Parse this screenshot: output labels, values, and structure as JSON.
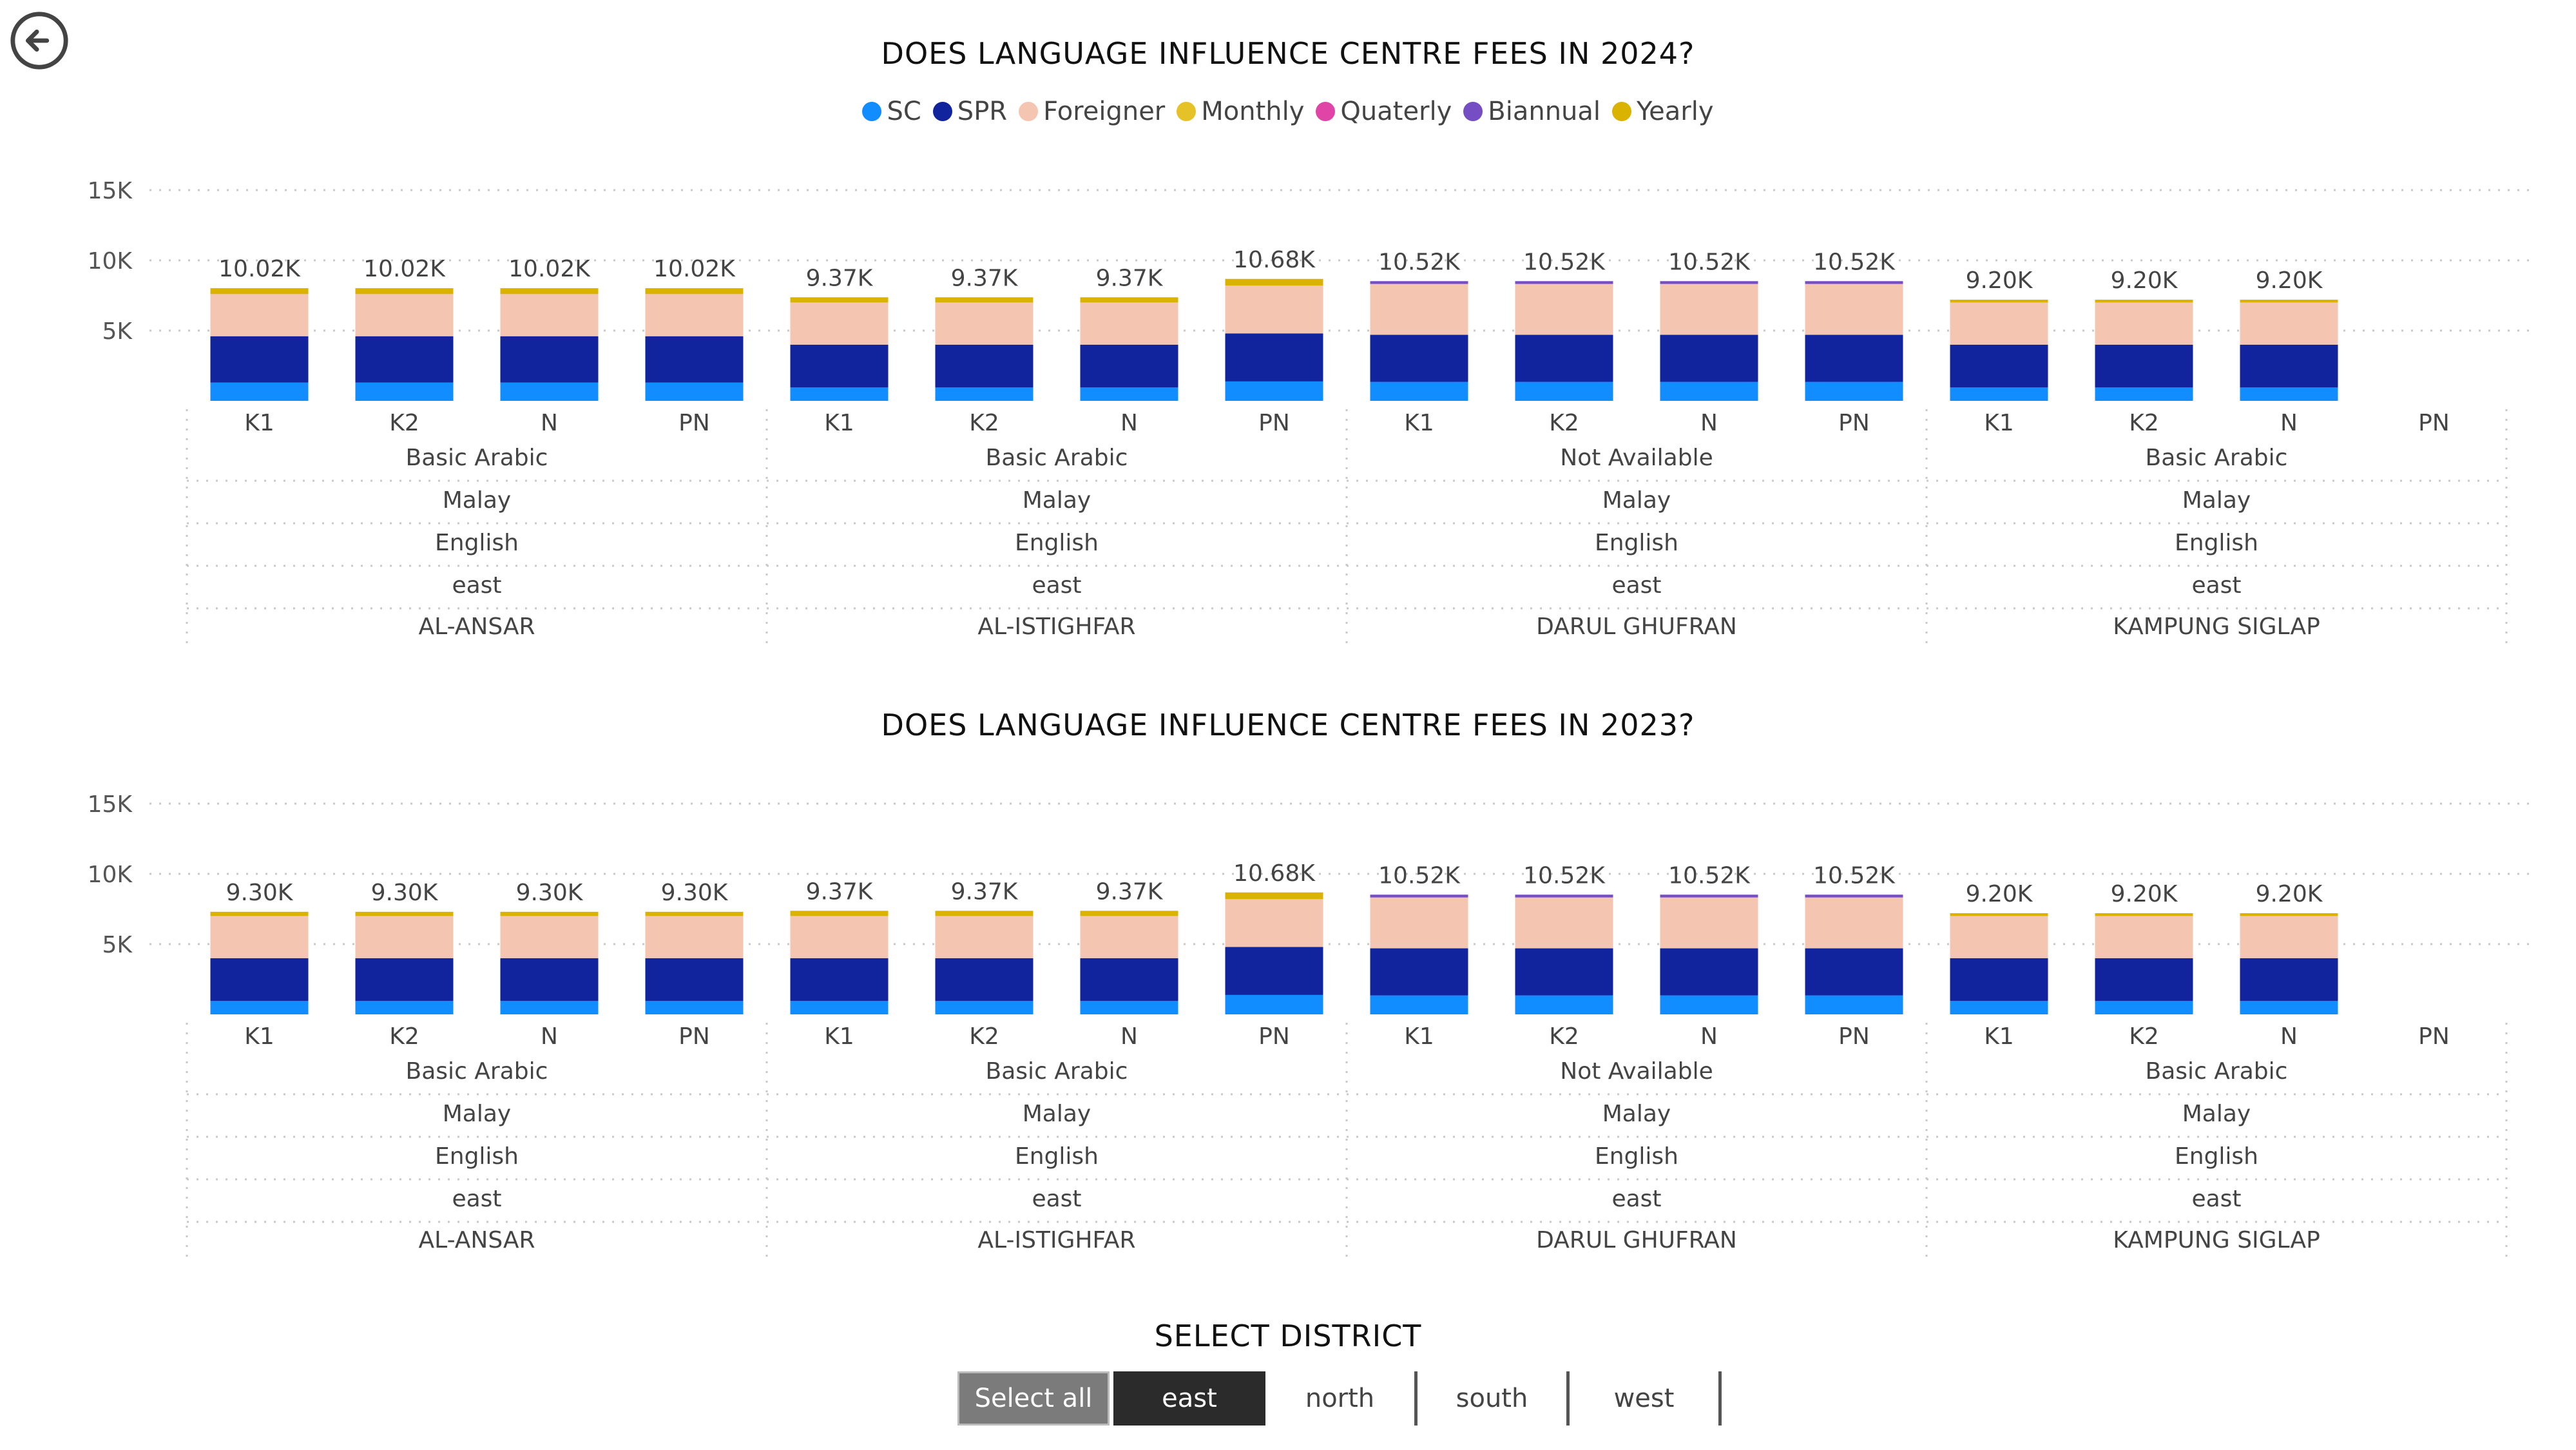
{
  "legend": [
    {
      "label": "SC",
      "color": "#118DFF"
    },
    {
      "label": "SPR",
      "color": "#12239E"
    },
    {
      "label": "Foreigner",
      "color": "#F4C5B0"
    },
    {
      "label": "Monthly",
      "color": "#E6C229"
    },
    {
      "label": "Quaterly",
      "color": "#E044A7"
    },
    {
      "label": "Biannual",
      "color": "#744EC2"
    },
    {
      "label": "Yearly",
      "color": "#D9B300"
    }
  ],
  "slicer": {
    "title": "SELECT DISTRICT",
    "options": [
      "Select all",
      "east",
      "north",
      "south",
      "west"
    ],
    "selected": "east"
  },
  "chart_data": [
    {
      "type": "bar",
      "stacked": true,
      "title": "DOES LANGUAGE INFLUENCE CENTRE FEES IN 2024?",
      "ylim": [
        0,
        15000
      ],
      "yticks": [
        {
          "v": 5000,
          "label": "5K"
        },
        {
          "v": 10000,
          "label": "10K"
        },
        {
          "v": 15000,
          "label": "15K"
        }
      ],
      "grid": true,
      "hierarchy_levels": [
        "subject",
        "language1",
        "language2",
        "district",
        "centre"
      ],
      "groups": [
        {
          "centre": "AL-ANSAR",
          "district": "east",
          "language2": "English",
          "language1": "Malay",
          "subject": "Basic Arabic",
          "categories": [
            "K1",
            "K2",
            "N",
            "PN"
          ],
          "totals": [
            "10.02K",
            "10.02K",
            "10.02K",
            "10.02K"
          ],
          "series": {
            "SC": [
              1300,
              1300,
              1300,
              1300
            ],
            "SPR": [
              3300,
              3300,
              3300,
              3300
            ],
            "Foreigner": [
              3000,
              3000,
              3000,
              3000
            ],
            "Monthly": [
              0,
              0,
              0,
              0
            ],
            "Quaterly": [
              0,
              0,
              0,
              0
            ],
            "Biannual": [
              0,
              0,
              0,
              0
            ],
            "Yearly": [
              420,
              420,
              420,
              420
            ]
          }
        },
        {
          "centre": "AL-ISTIGHFAR",
          "district": "east",
          "language2": "English",
          "language1": "Malay",
          "subject": "Basic Arabic",
          "categories": [
            "K1",
            "K2",
            "N",
            "PN"
          ],
          "totals": [
            "9.37K",
            "9.37K",
            "9.37K",
            "10.68K"
          ],
          "series": {
            "SC": [
              950,
              950,
              950,
              1380
            ],
            "SPR": [
              3050,
              3050,
              3050,
              3420
            ],
            "Foreigner": [
              3000,
              3000,
              3000,
              3400
            ],
            "Monthly": [
              0,
              0,
              0,
              0
            ],
            "Quaterly": [
              0,
              0,
              0,
              0
            ],
            "Biannual": [
              0,
              0,
              0,
              0
            ],
            "Yearly": [
              370,
              370,
              370,
              480
            ]
          }
        },
        {
          "centre": "DARUL GHUFRAN",
          "district": "east",
          "language2": "English",
          "language1": "Malay",
          "subject": "Not Available",
          "categories": [
            "K1",
            "K2",
            "N",
            "PN"
          ],
          "totals": [
            "10.52K",
            "10.52K",
            "10.52K",
            "10.52K"
          ],
          "series": {
            "SC": [
              1350,
              1350,
              1350,
              1350
            ],
            "SPR": [
              3350,
              3350,
              3350,
              3350
            ],
            "Foreigner": [
              3620,
              3620,
              3620,
              3620
            ],
            "Monthly": [
              0,
              0,
              0,
              0
            ],
            "Quaterly": [
              0,
              0,
              0,
              0
            ],
            "Biannual": [
              200,
              200,
              200,
              200
            ],
            "Yearly": [
              0,
              0,
              0,
              0
            ]
          }
        },
        {
          "centre": "KAMPUNG SIGLAP",
          "district": "east",
          "language2": "English",
          "language1": "Malay",
          "subject": "Basic Arabic",
          "categories": [
            "K1",
            "K2",
            "N",
            "PN"
          ],
          "totals": [
            "9.20K",
            "9.20K",
            "9.20K",
            null
          ],
          "series": {
            "SC": [
              950,
              950,
              950,
              0
            ],
            "SPR": [
              3050,
              3050,
              3050,
              0
            ],
            "Foreigner": [
              3000,
              3000,
              3000,
              0
            ],
            "Monthly": [
              0,
              0,
              0,
              0
            ],
            "Quaterly": [
              0,
              0,
              0,
              0
            ],
            "Biannual": [
              0,
              0,
              0,
              0
            ],
            "Yearly": [
              200,
              200,
              200,
              0
            ]
          }
        }
      ]
    },
    {
      "type": "bar",
      "stacked": true,
      "title": "DOES LANGUAGE INFLUENCE CENTRE FEES IN 2023?",
      "ylim": [
        0,
        15000
      ],
      "yticks": [
        {
          "v": 5000,
          "label": "5K"
        },
        {
          "v": 10000,
          "label": "10K"
        },
        {
          "v": 15000,
          "label": "15K"
        }
      ],
      "grid": true,
      "hierarchy_levels": [
        "subject",
        "language1",
        "language2",
        "district",
        "centre"
      ],
      "groups": [
        {
          "centre": "AL-ANSAR",
          "district": "east",
          "language2": "English",
          "language1": "Malay",
          "subject": "Basic Arabic",
          "categories": [
            "K1",
            "K2",
            "N",
            "PN"
          ],
          "totals": [
            "9.30K",
            "9.30K",
            "9.30K",
            "9.30K"
          ],
          "series": {
            "SC": [
              950,
              950,
              950,
              950
            ],
            "SPR": [
              3050,
              3050,
              3050,
              3050
            ],
            "Foreigner": [
              3000,
              3000,
              3000,
              3000
            ],
            "Monthly": [
              0,
              0,
              0,
              0
            ],
            "Quaterly": [
              0,
              0,
              0,
              0
            ],
            "Biannual": [
              0,
              0,
              0,
              0
            ],
            "Yearly": [
              300,
              300,
              300,
              300
            ]
          }
        },
        {
          "centre": "AL-ISTIGHFAR",
          "district": "east",
          "language2": "English",
          "language1": "Malay",
          "subject": "Basic Arabic",
          "categories": [
            "K1",
            "K2",
            "N",
            "PN"
          ],
          "totals": [
            "9.37K",
            "9.37K",
            "9.37K",
            "10.68K"
          ],
          "series": {
            "SC": [
              950,
              950,
              950,
              1380
            ],
            "SPR": [
              3050,
              3050,
              3050,
              3420
            ],
            "Foreigner": [
              3000,
              3000,
              3000,
              3400
            ],
            "Monthly": [
              0,
              0,
              0,
              0
            ],
            "Quaterly": [
              0,
              0,
              0,
              0
            ],
            "Biannual": [
              0,
              0,
              0,
              0
            ],
            "Yearly": [
              370,
              370,
              370,
              480
            ]
          }
        },
        {
          "centre": "DARUL GHUFRAN",
          "district": "east",
          "language2": "English",
          "language1": "Malay",
          "subject": "Not Available",
          "categories": [
            "K1",
            "K2",
            "N",
            "PN"
          ],
          "totals": [
            "10.52K",
            "10.52K",
            "10.52K",
            "10.52K"
          ],
          "series": {
            "SC": [
              1350,
              1350,
              1350,
              1350
            ],
            "SPR": [
              3350,
              3350,
              3350,
              3350
            ],
            "Foreigner": [
              3620,
              3620,
              3620,
              3620
            ],
            "Monthly": [
              0,
              0,
              0,
              0
            ],
            "Quaterly": [
              0,
              0,
              0,
              0
            ],
            "Biannual": [
              200,
              200,
              200,
              200
            ],
            "Yearly": [
              0,
              0,
              0,
              0
            ]
          }
        },
        {
          "centre": "KAMPUNG SIGLAP",
          "district": "east",
          "language2": "English",
          "language1": "Malay",
          "subject": "Basic Arabic",
          "categories": [
            "K1",
            "K2",
            "N",
            "PN"
          ],
          "totals": [
            "9.20K",
            "9.20K",
            "9.20K",
            null
          ],
          "series": {
            "SC": [
              950,
              950,
              950,
              0
            ],
            "SPR": [
              3050,
              3050,
              3050,
              0
            ],
            "Foreigner": [
              3000,
              3000,
              3000,
              0
            ],
            "Monthly": [
              0,
              0,
              0,
              0
            ],
            "Quaterly": [
              0,
              0,
              0,
              0
            ],
            "Biannual": [
              0,
              0,
              0,
              0
            ],
            "Yearly": [
              200,
              200,
              200,
              0
            ]
          }
        }
      ]
    }
  ]
}
